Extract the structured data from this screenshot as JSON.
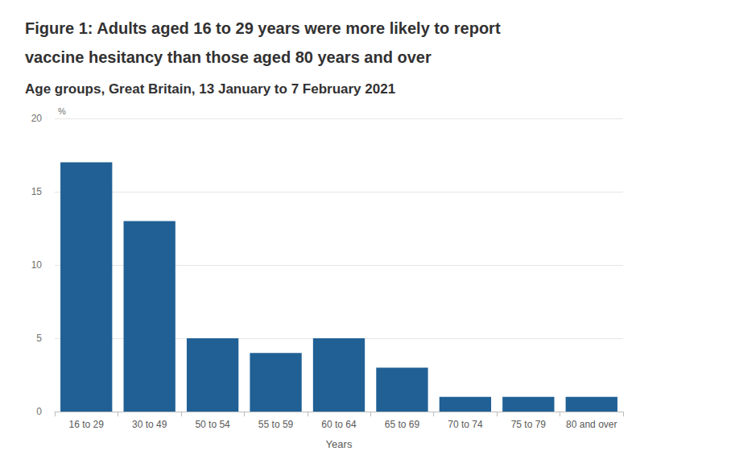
{
  "chart_data": {
    "type": "bar",
    "title": "Figure 1: Adults aged 16 to 29 years were more likely to report vaccine hesitancy than those aged 80 years and over",
    "subtitle": "Age groups, Great Britain, 13 January to 7 February 2021",
    "x_label": "Years",
    "y_label": "%",
    "categories": [
      "16 to 29",
      "30 to 49",
      "50 to 54",
      "55 to 59",
      "60 to 64",
      "65 to 69",
      "70 to 74",
      "75 to 79",
      "80 and over"
    ],
    "values": [
      17,
      13,
      5,
      4,
      5,
      3,
      1,
      1,
      1
    ],
    "color": "#206095",
    "ylim": [
      0,
      20
    ],
    "yticks": [
      0,
      5,
      10,
      15,
      20
    ],
    "grid": true
  }
}
